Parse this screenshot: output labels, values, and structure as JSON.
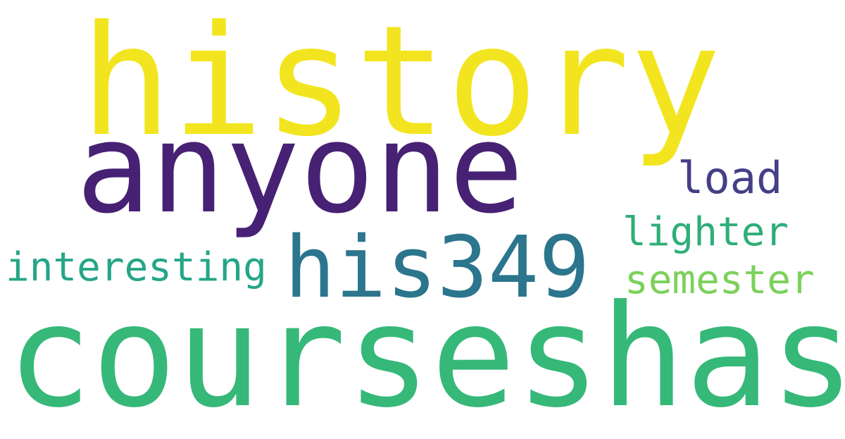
{
  "word_cloud": {
    "words": [
      {
        "text": "history",
        "color": "#f2e51f"
      },
      {
        "text": "anyone",
        "color": "#472174"
      },
      {
        "text": "his349",
        "color": "#2b758d"
      },
      {
        "text": "courseshas",
        "color": "#36b878"
      },
      {
        "text": "load",
        "color": "#453f87"
      },
      {
        "text": "lighter",
        "color": "#2fae78"
      },
      {
        "text": "interesting",
        "color": "#24a687"
      },
      {
        "text": "semester",
        "color": "#7cd15b"
      }
    ]
  }
}
